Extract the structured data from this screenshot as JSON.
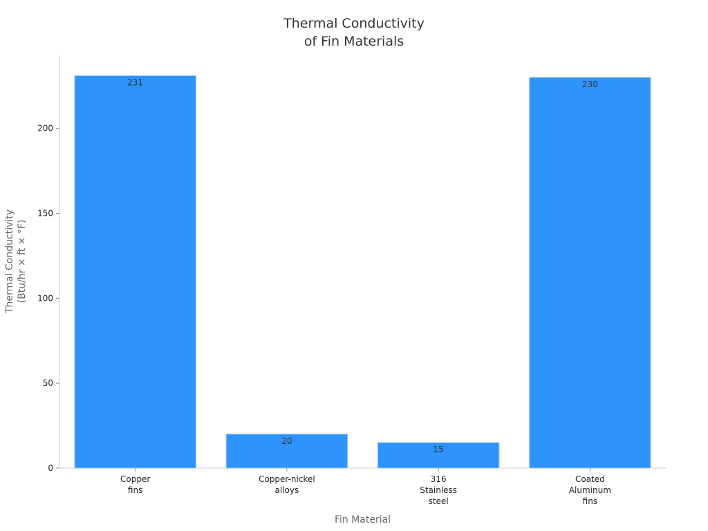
{
  "chart_data": {
    "type": "bar",
    "title": [
      "Thermal Conductivity",
      "of Fin Materials"
    ],
    "xlabel": "Fin Material",
    "ylabel": [
      "Thermal Conductivity",
      "(Btu/hr × ft × °F)"
    ],
    "categories": [
      [
        "Copper",
        "fins"
      ],
      [
        "Copper-nickel",
        "alloys"
      ],
      [
        "316",
        "Stainless",
        "steel"
      ],
      [
        "Coated",
        "Aluminum",
        "fins"
      ]
    ],
    "values": [
      231,
      20,
      15,
      230
    ],
    "data_labels": [
      "231",
      "20",
      "15",
      "230"
    ],
    "ylim": [
      0,
      243
    ],
    "yticks": [
      0,
      50,
      100,
      150,
      200
    ],
    "ytick_labels": [
      "0",
      "50",
      "100",
      "150",
      "200"
    ],
    "grid": false,
    "legend": "none",
    "bar_color": "#2e93fa",
    "bar_edge_color": "#9cc9f7"
  }
}
